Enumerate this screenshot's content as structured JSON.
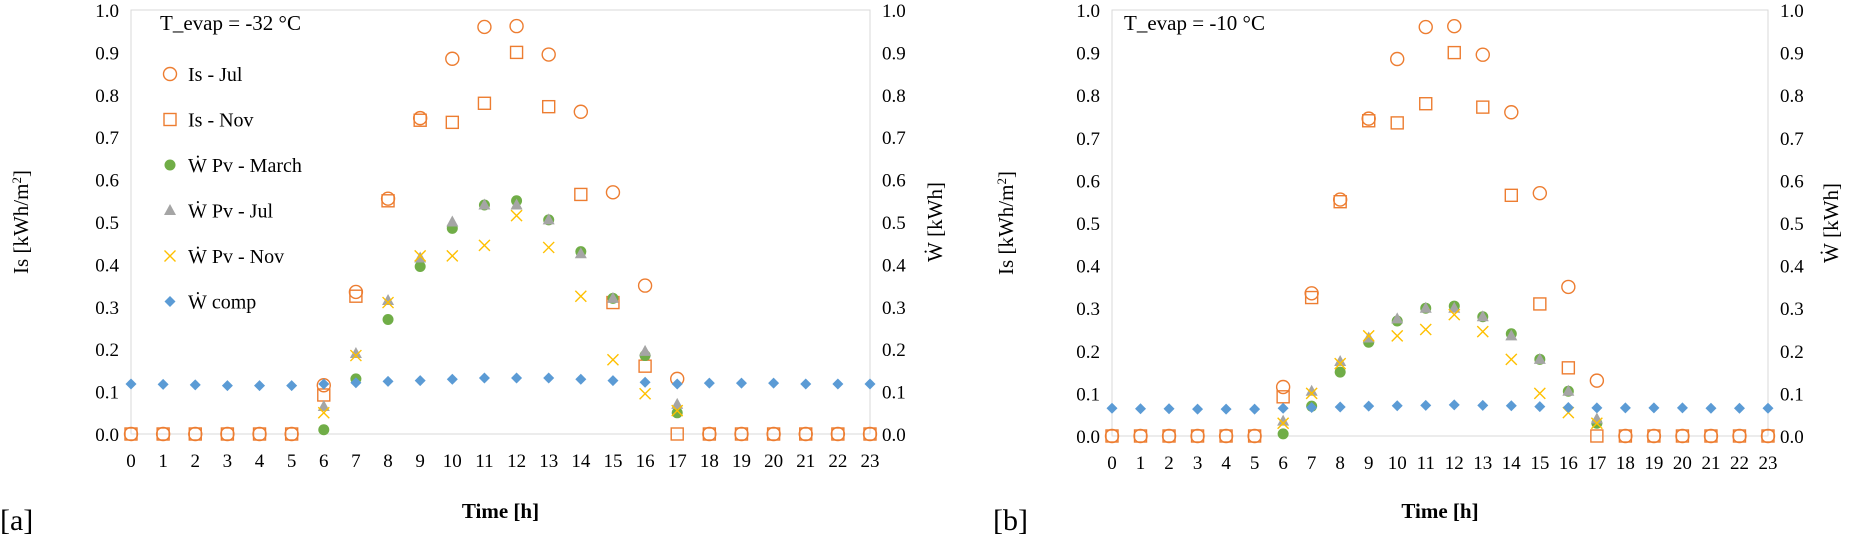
{
  "chart_data": [
    {
      "panel_label": "[a]",
      "type": "scatter",
      "annotation": "T_evap = -32 °C",
      "xlabel": "Time [h]",
      "ylabel_left": "Is [kWh/m²]",
      "ylabel_right": "Ẇ [kWh]",
      "ylim_left": [
        0,
        1
      ],
      "ylim_right": [
        0,
        1
      ],
      "xlim": [
        0,
        23
      ],
      "x_ticks": [
        "0",
        "1",
        "2",
        "3",
        "4",
        "5",
        "6",
        "7",
        "8",
        "9",
        "10",
        "11",
        "12",
        "13",
        "14",
        "15",
        "16",
        "17",
        "18",
        "19",
        "20",
        "21",
        "22",
        "23"
      ],
      "y_ticks": [
        "0.0",
        "0.1",
        "0.2",
        "0.3",
        "0.4",
        "0.5",
        "0.6",
        "0.7",
        "0.8",
        "0.9",
        "1.0"
      ],
      "legend_position": "top-left",
      "grid": false,
      "series": [
        {
          "name": "Is - Jul",
          "marker": "circle-open",
          "color": "#ED7D31",
          "x": [
            0,
            1,
            2,
            3,
            4,
            5,
            6,
            7,
            8,
            9,
            10,
            11,
            12,
            13,
            14,
            15,
            16,
            17,
            18,
            19,
            20,
            21,
            22,
            23
          ],
          "y": [
            0,
            0,
            0,
            0,
            0,
            0,
            0.115,
            0.335,
            0.555,
            0.745,
            0.885,
            0.96,
            0.962,
            0.895,
            0.76,
            0.57,
            0.35,
            0.13,
            0,
            0,
            0,
            0,
            0,
            0
          ]
        },
        {
          "name": "Is - Nov",
          "marker": "square-open",
          "color": "#ED7D31",
          "x": [
            0,
            1,
            2,
            3,
            4,
            5,
            6,
            7,
            8,
            9,
            10,
            11,
            12,
            13,
            14,
            15,
            16,
            17,
            18,
            19,
            20,
            21,
            22,
            23
          ],
          "y": [
            0,
            0,
            0,
            0,
            0,
            0,
            0.092,
            0.325,
            0.55,
            0.74,
            0.735,
            0.78,
            0.9,
            0.772,
            0.565,
            0.31,
            0.16,
            0,
            0,
            0,
            0,
            0,
            0,
            0
          ]
        },
        {
          "name": "Ẇ Pv - March",
          "marker": "circle-filled",
          "color": "#70AD47",
          "x": [
            6,
            7,
            8,
            9,
            10,
            11,
            12,
            13,
            14,
            15,
            16,
            17
          ],
          "y": [
            0.01,
            0.13,
            0.27,
            0.395,
            0.485,
            0.54,
            0.55,
            0.505,
            0.43,
            0.32,
            0.185,
            0.05
          ]
        },
        {
          "name": "Ẇ Pv - Jul",
          "marker": "triangle",
          "color": "#A5A5A5",
          "x": [
            6,
            7,
            8,
            9,
            10,
            11,
            12,
            13,
            14,
            15,
            16,
            17
          ],
          "y": [
            0.065,
            0.19,
            0.315,
            0.415,
            0.5,
            0.54,
            0.54,
            0.505,
            0.425,
            0.32,
            0.195,
            0.07
          ]
        },
        {
          "name": "Ẇ Pv - Nov",
          "marker": "x",
          "color": "#FFC000",
          "x": [
            6,
            7,
            8,
            9,
            10,
            11,
            12,
            13,
            14,
            15,
            16,
            17
          ],
          "y": [
            0.05,
            0.185,
            0.31,
            0.42,
            0.42,
            0.445,
            0.515,
            0.44,
            0.325,
            0.175,
            0.095,
            0.055
          ]
        },
        {
          "name": "Ẇ comp",
          "marker": "diamond",
          "color": "#5B9BD5",
          "x": [
            0,
            1,
            2,
            3,
            4,
            5,
            6,
            7,
            8,
            9,
            10,
            11,
            12,
            13,
            14,
            15,
            16,
            17,
            18,
            19,
            20,
            21,
            22,
            23
          ],
          "y": [
            0.118,
            0.117,
            0.116,
            0.114,
            0.114,
            0.114,
            0.118,
            0.121,
            0.124,
            0.126,
            0.129,
            0.132,
            0.132,
            0.132,
            0.129,
            0.126,
            0.122,
            0.118,
            0.12,
            0.12,
            0.12,
            0.118,
            0.118,
            0.118
          ]
        }
      ]
    },
    {
      "panel_label": "[b]",
      "type": "scatter",
      "annotation": "T_evap = -10 °C",
      "xlabel": "Time [h]",
      "ylabel_left": "Is [kWh/m²]",
      "ylabel_right": "Ẇ [kWh]",
      "ylim_left": [
        0,
        1
      ],
      "ylim_right": [
        0,
        1
      ],
      "xlim": [
        0,
        23
      ],
      "x_ticks": [
        "0",
        "1",
        "2",
        "3",
        "4",
        "5",
        "6",
        "7",
        "8",
        "9",
        "10",
        "11",
        "12",
        "13",
        "14",
        "15",
        "16",
        "17",
        "18",
        "19",
        "20",
        "21",
        "22",
        "23"
      ],
      "y_ticks": [
        "0.0",
        "0.1",
        "0.2",
        "0.3",
        "0.4",
        "0.5",
        "0.6",
        "0.7",
        "0.8",
        "0.9",
        "1.0"
      ],
      "grid": false,
      "series": [
        {
          "name": "Is - Jul",
          "marker": "circle-open",
          "color": "#ED7D31",
          "x": [
            0,
            1,
            2,
            3,
            4,
            5,
            6,
            7,
            8,
            9,
            10,
            11,
            12,
            13,
            14,
            15,
            16,
            17,
            18,
            19,
            20,
            21,
            22,
            23
          ],
          "y": [
            0,
            0,
            0,
            0,
            0,
            0,
            0.115,
            0.335,
            0.555,
            0.745,
            0.885,
            0.96,
            0.962,
            0.895,
            0.76,
            0.57,
            0.35,
            0.13,
            0,
            0,
            0,
            0,
            0,
            0
          ]
        },
        {
          "name": "Is - Nov",
          "marker": "square-open",
          "color": "#ED7D31",
          "x": [
            0,
            1,
            2,
            3,
            4,
            5,
            6,
            7,
            8,
            9,
            10,
            11,
            12,
            13,
            14,
            15,
            16,
            17,
            18,
            19,
            20,
            21,
            22,
            23
          ],
          "y": [
            0,
            0,
            0,
            0,
            0,
            0,
            0.092,
            0.325,
            0.55,
            0.74,
            0.735,
            0.78,
            0.9,
            0.772,
            0.565,
            0.31,
            0.16,
            0,
            0,
            0,
            0,
            0,
            0,
            0
          ]
        },
        {
          "name": "Ẇ Pv - March",
          "marker": "circle-filled",
          "color": "#70AD47",
          "x": [
            6,
            7,
            8,
            9,
            10,
            11,
            12,
            13,
            14,
            15,
            16,
            17
          ],
          "y": [
            0.005,
            0.07,
            0.15,
            0.22,
            0.27,
            0.3,
            0.305,
            0.28,
            0.24,
            0.18,
            0.105,
            0.03
          ]
        },
        {
          "name": "Ẇ Pv - Jul",
          "marker": "triangle",
          "color": "#A5A5A5",
          "x": [
            6,
            7,
            8,
            9,
            10,
            11,
            12,
            13,
            14,
            15,
            16,
            17
          ],
          "y": [
            0.035,
            0.105,
            0.175,
            0.23,
            0.275,
            0.3,
            0.3,
            0.28,
            0.235,
            0.18,
            0.105,
            0.04
          ]
        },
        {
          "name": "Ẇ Pv - Nov",
          "marker": "x",
          "color": "#FFC000",
          "x": [
            6,
            7,
            8,
            9,
            10,
            11,
            12,
            13,
            14,
            15,
            16,
            17
          ],
          "y": [
            0.03,
            0.1,
            0.17,
            0.235,
            0.235,
            0.25,
            0.285,
            0.245,
            0.18,
            0.1,
            0.055,
            0.03
          ]
        },
        {
          "name": "Ẇ comp",
          "marker": "diamond",
          "color": "#5B9BD5",
          "x": [
            0,
            1,
            2,
            3,
            4,
            5,
            6,
            7,
            8,
            9,
            10,
            11,
            12,
            13,
            14,
            15,
            16,
            17,
            18,
            19,
            20,
            21,
            22,
            23
          ],
          "y": [
            0.065,
            0.064,
            0.064,
            0.063,
            0.063,
            0.063,
            0.065,
            0.067,
            0.068,
            0.07,
            0.071,
            0.072,
            0.073,
            0.072,
            0.071,
            0.069,
            0.067,
            0.066,
            0.066,
            0.066,
            0.066,
            0.065,
            0.065,
            0.065
          ]
        }
      ]
    }
  ]
}
